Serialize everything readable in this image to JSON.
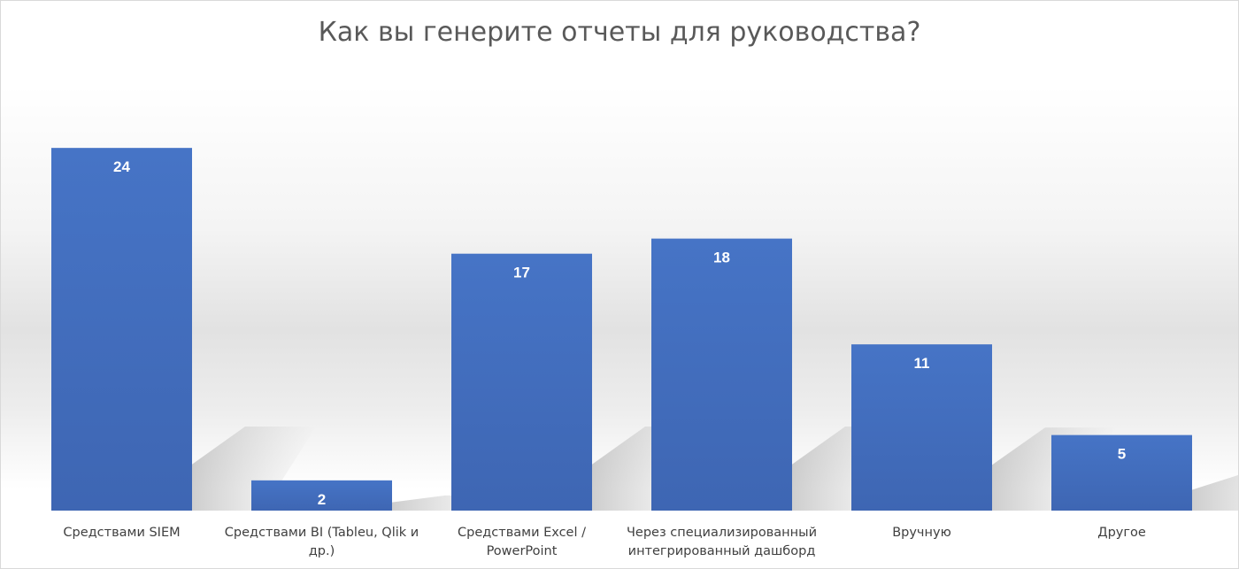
{
  "chart_data": {
    "type": "bar",
    "title": "Как вы генерите отчеты для руководства?",
    "categories": [
      [
        "Средствами SIEM"
      ],
      [
        "Средствами BI (Tableu,  Qlik и",
        "др.)"
      ],
      [
        "Средствами Excel /",
        "PowerPoint"
      ],
      [
        "Через специализированный",
        "интегрированный дашборд"
      ],
      [
        "Вручную"
      ],
      [
        "Другое"
      ]
    ],
    "values": [
      24,
      2,
      17,
      18,
      11,
      5
    ],
    "ylim": [
      0,
      26
    ],
    "xlabel": "",
    "ylabel": "",
    "grid": false,
    "legend": "none",
    "data_labels": "inside-top",
    "bar_color": "#4472c4",
    "label_color": "#ffffff"
  }
}
